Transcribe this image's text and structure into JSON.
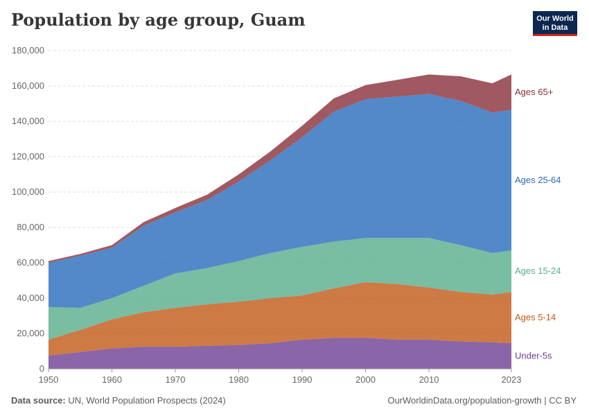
{
  "header": {
    "title": "Population by age group, Guam",
    "logo_line1": "Our World",
    "logo_line2": "in Data"
  },
  "footer": {
    "source_label": "Data source:",
    "source_text": "UN, World Population Prospects (2024)",
    "link_text": "OurWorldinData.org/population-growth | CC BY"
  },
  "chart_data": {
    "type": "area",
    "stacked": true,
    "title": "Population by age group, Guam",
    "xlabel": "",
    "ylabel": "",
    "xlim": [
      1950,
      2023
    ],
    "ylim": [
      0,
      180000
    ],
    "y_ticks": [
      0,
      20000,
      40000,
      60000,
      80000,
      100000,
      120000,
      140000,
      160000,
      180000
    ],
    "y_tick_labels": [
      "0",
      "20,000",
      "40,000",
      "60,000",
      "80,000",
      "100,000",
      "120,000",
      "140,000",
      "160,000",
      "180,000"
    ],
    "x_ticks": [
      1950,
      1960,
      1970,
      1980,
      1990,
      2000,
      2010,
      2023
    ],
    "x_tick_labels": [
      "1950",
      "1960",
      "1970",
      "1980",
      "1990",
      "2000",
      "2010",
      "2023"
    ],
    "grid": true,
    "legend": "right-inline",
    "x": [
      1950,
      1955,
      1960,
      1965,
      1970,
      1975,
      1980,
      1985,
      1990,
      1995,
      2000,
      2005,
      2010,
      2015,
      2020,
      2023
    ],
    "series": [
      {
        "name": "Under-5s",
        "color": "#6d3e91",
        "values": [
          7500,
          9500,
          11500,
          12500,
          12500,
          13000,
          13500,
          14500,
          16500,
          17500,
          17500,
          16500,
          16500,
          15500,
          15000,
          14500
        ]
      },
      {
        "name": "Ages 5-14",
        "color": "#c05917",
        "values": [
          9000,
          12500,
          16500,
          19500,
          22000,
          23500,
          24500,
          25500,
          25000,
          28000,
          31500,
          31500,
          29500,
          28000,
          27000,
          29000
        ]
      },
      {
        "name": "Ages 15-24",
        "color": "#58ac8c",
        "values": [
          18500,
          12500,
          12000,
          15000,
          19500,
          20500,
          23000,
          25500,
          27500,
          26500,
          25000,
          26000,
          28000,
          26500,
          23500,
          23500
        ]
      },
      {
        "name": "Ages 25-64",
        "color": "#286bbb",
        "values": [
          25000,
          29500,
          28500,
          34000,
          34500,
          38500,
          45000,
          52500,
          62000,
          73500,
          78500,
          80000,
          81500,
          81500,
          79500,
          79500
        ]
      },
      {
        "name": "Ages 65+",
        "color": "#883039",
        "values": [
          1000,
          1000,
          1500,
          2000,
          2500,
          3000,
          4000,
          5000,
          6500,
          7500,
          8000,
          9500,
          11000,
          14000,
          16500,
          20000
        ]
      }
    ]
  }
}
